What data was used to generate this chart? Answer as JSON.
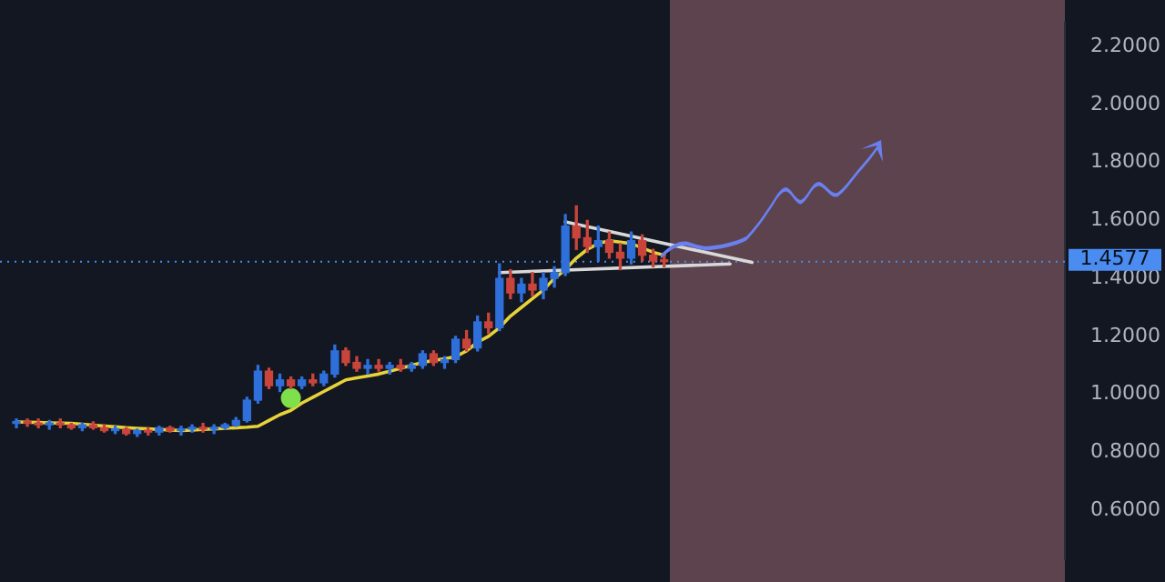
{
  "chart_data": {
    "type": "candlestick",
    "categories": [
      null,
      null,
      null,
      null,
      null,
      null,
      null,
      null,
      null,
      null,
      null,
      null,
      null,
      null,
      null,
      null,
      null,
      null,
      null,
      null,
      null,
      null,
      null,
      null,
      null,
      null,
      null,
      null,
      null,
      null,
      null,
      null,
      null,
      null,
      null,
      null,
      null,
      null,
      null,
      null,
      null,
      null,
      null,
      null,
      null,
      null,
      null,
      null,
      null,
      null,
      null,
      null,
      null,
      null,
      null,
      null,
      null,
      null,
      null,
      null,
      null,
      null,
      null,
      null,
      null,
      null,
      null,
      null,
      null,
      null,
      null,
      null,
      null,
      null,
      null,
      null,
      null,
      null,
      null,
      null,
      null,
      null,
      null,
      null,
      null,
      null,
      null,
      null,
      null,
      null,
      null,
      null,
      null,
      null,
      null,
      null
    ],
    "ohlc": [
      [
        0.9,
        0.915,
        0.885,
        0.905
      ],
      [
        0.905,
        0.915,
        0.89,
        0.9
      ],
      [
        0.9,
        0.915,
        0.885,
        0.895
      ],
      [
        0.895,
        0.91,
        0.88,
        0.9
      ],
      [
        0.9,
        0.915,
        0.885,
        0.895
      ],
      [
        0.895,
        0.9,
        0.88,
        0.885
      ],
      [
        0.885,
        0.9,
        0.875,
        0.895
      ],
      [
        0.895,
        0.905,
        0.88,
        0.885
      ],
      [
        0.885,
        0.895,
        0.87,
        0.875
      ],
      [
        0.875,
        0.89,
        0.865,
        0.88
      ],
      [
        0.88,
        0.885,
        0.86,
        0.865
      ],
      [
        0.865,
        0.88,
        0.855,
        0.875
      ],
      [
        0.875,
        0.885,
        0.86,
        0.87
      ],
      [
        0.87,
        0.89,
        0.86,
        0.885
      ],
      [
        0.885,
        0.89,
        0.87,
        0.875
      ],
      [
        0.875,
        0.89,
        0.86,
        0.88
      ],
      [
        0.88,
        0.895,
        0.87,
        0.885
      ],
      [
        0.885,
        0.9,
        0.87,
        0.88
      ],
      [
        0.88,
        0.895,
        0.865,
        0.885
      ],
      [
        0.885,
        0.9,
        0.88,
        0.895
      ],
      [
        0.895,
        0.92,
        0.89,
        0.91
      ],
      [
        0.91,
        0.99,
        0.905,
        0.98
      ],
      [
        0.98,
        1.1,
        0.97,
        1.08
      ],
      [
        1.08,
        1.09,
        1.02,
        1.03
      ],
      [
        1.03,
        1.07,
        1.01,
        1.05
      ],
      [
        1.05,
        1.06,
        1.02,
        1.03
      ],
      [
        1.03,
        1.06,
        1.02,
        1.05
      ],
      [
        1.05,
        1.07,
        1.03,
        1.04
      ],
      [
        1.04,
        1.08,
        1.03,
        1.07
      ],
      [
        1.07,
        1.17,
        1.06,
        1.15
      ],
      [
        1.15,
        1.16,
        1.1,
        1.11
      ],
      [
        1.11,
        1.13,
        1.08,
        1.09
      ],
      [
        1.09,
        1.12,
        1.07,
        1.1
      ],
      [
        1.1,
        1.12,
        1.08,
        1.09
      ],
      [
        1.09,
        1.11,
        1.07,
        1.1
      ],
      [
        1.1,
        1.12,
        1.08,
        1.09
      ],
      [
        1.09,
        1.11,
        1.08,
        1.1
      ],
      [
        1.1,
        1.15,
        1.09,
        1.14
      ],
      [
        1.14,
        1.15,
        1.1,
        1.11
      ],
      [
        1.11,
        1.13,
        1.09,
        1.12
      ],
      [
        1.12,
        1.2,
        1.11,
        1.19
      ],
      [
        1.19,
        1.22,
        1.15,
        1.16
      ],
      [
        1.16,
        1.27,
        1.15,
        1.25
      ],
      [
        1.25,
        1.28,
        1.21,
        1.23
      ],
      [
        1.23,
        1.45,
        1.22,
        1.4
      ],
      [
        1.4,
        1.43,
        1.33,
        1.35
      ],
      [
        1.35,
        1.4,
        1.32,
        1.38
      ],
      [
        1.38,
        1.42,
        1.34,
        1.36
      ],
      [
        1.36,
        1.42,
        1.33,
        1.4
      ],
      [
        1.4,
        1.44,
        1.37,
        1.42
      ],
      [
        1.42,
        1.62,
        1.41,
        1.58
      ],
      [
        1.58,
        1.65,
        1.5,
        1.54
      ],
      [
        1.54,
        1.6,
        1.49,
        1.51
      ],
      [
        1.51,
        1.58,
        1.46,
        1.53
      ],
      [
        1.53,
        1.56,
        1.47,
        1.49
      ],
      [
        1.49,
        1.52,
        1.43,
        1.47
      ],
      [
        1.47,
        1.56,
        1.45,
        1.53
      ],
      [
        1.53,
        1.55,
        1.46,
        1.48
      ],
      [
        1.48,
        1.5,
        1.44,
        1.46
      ],
      [
        1.46,
        1.48,
        1.44,
        1.4577
      ],
      null,
      null,
      null,
      null,
      null,
      null,
      null,
      null,
      null,
      null,
      null,
      null,
      null,
      null,
      null,
      null,
      null,
      null,
      null,
      null,
      null,
      null,
      null,
      null,
      null,
      null,
      null,
      null,
      null,
      null,
      null,
      null,
      null,
      null,
      null,
      null
    ],
    "colors": [
      "#2e6fd9",
      "#c9453c",
      "#c9453c",
      "#2e6fd9",
      "#c9453c",
      "#c9453c",
      "#2e6fd9",
      "#c9453c",
      "#c9453c",
      "#2e6fd9",
      "#c9453c",
      "#2e6fd9",
      "#c9453c",
      "#2e6fd9",
      "#c9453c",
      "#2e6fd9",
      "#2e6fd9",
      "#c9453c",
      "#2e6fd9",
      "#2e6fd9",
      "#2e6fd9",
      "#2e6fd9",
      "#2e6fd9",
      "#c9453c",
      "#2e6fd9",
      "#c9453c",
      "#2e6fd9",
      "#c9453c",
      "#2e6fd9",
      "#2e6fd9",
      "#c9453c",
      "#c9453c",
      "#2e6fd9",
      "#c9453c",
      "#2e6fd9",
      "#c9453c",
      "#2e6fd9",
      "#2e6fd9",
      "#c9453c",
      "#2e6fd9",
      "#2e6fd9",
      "#c9453c",
      "#2e6fd9",
      "#c9453c",
      "#2e6fd9",
      "#c9453c",
      "#2e6fd9",
      "#c9453c",
      "#2e6fd9",
      "#2e6fd9",
      "#2e6fd9",
      "#c9453c",
      "#c9453c",
      "#2e6fd9",
      "#c9453c",
      "#c9453c",
      "#2e6fd9",
      "#c9453c",
      "#c9453c",
      "#c9453c",
      null,
      null,
      null,
      null,
      null,
      null,
      null,
      null,
      null,
      null,
      null,
      null,
      null,
      null,
      null,
      null,
      null,
      null,
      null,
      null,
      null,
      null,
      null,
      null,
      null,
      null,
      null,
      null,
      null,
      null,
      null,
      null,
      null,
      null,
      null,
      null
    ],
    "series": [
      {
        "type": "line",
        "color": "#e8d23a",
        "marker": "none",
        "values": [
          0.905,
          0.904,
          0.903,
          0.902,
          0.901,
          0.9,
          0.897,
          0.894,
          0.891,
          0.888,
          0.885,
          0.883,
          0.881,
          0.879,
          0.877,
          0.875,
          0.877,
          0.879,
          0.881,
          0.883,
          0.885,
          0.887,
          0.89,
          0.91,
          0.93,
          0.945,
          0.97,
          0.99,
          1.01,
          1.03,
          1.05,
          1.057,
          1.063,
          1.07,
          1.08,
          1.09,
          1.1,
          1.11,
          1.117,
          1.123,
          1.13,
          1.15,
          1.18,
          1.2,
          1.23,
          1.27,
          1.3,
          1.33,
          1.36,
          1.4,
          1.43,
          1.47,
          1.5,
          1.52,
          1.53,
          1.525,
          1.52,
          1.505,
          1.49,
          1.48,
          null,
          null,
          null,
          null,
          null,
          null,
          null,
          null,
          null,
          null,
          null,
          null,
          null,
          null,
          null,
          null,
          null,
          null,
          null,
          null,
          null,
          null,
          null,
          null,
          null,
          null,
          null,
          null,
          null,
          null,
          null,
          null,
          null,
          null,
          null,
          null
        ]
      },
      {
        "type": "line",
        "color": "#d8d8d8",
        "marker": "none",
        "values": [
          null,
          null,
          null,
          null,
          null,
          null,
          null,
          null,
          null,
          null,
          null,
          null,
          null,
          null,
          null,
          null,
          null,
          null,
          null,
          null,
          null,
          null,
          null,
          null,
          null,
          null,
          null,
          null,
          null,
          null,
          null,
          null,
          null,
          null,
          null,
          null,
          null,
          null,
          null,
          null,
          null,
          null,
          null,
          null,
          null,
          null,
          null,
          null,
          null,
          null,
          1.595,
          null,
          null,
          null,
          null,
          null,
          null,
          null,
          null,
          null,
          null,
          null,
          null,
          null,
          null,
          null,
          null,
          1.455,
          null,
          null,
          null,
          null,
          null,
          null,
          null,
          null,
          null,
          null,
          null,
          null,
          null,
          null,
          null,
          null,
          null,
          null,
          null,
          null,
          null,
          null,
          null,
          null,
          null,
          null,
          null,
          null
        ]
      },
      {
        "type": "line",
        "color": "#d8d8d8",
        "marker": "none",
        "values": [
          null,
          null,
          null,
          null,
          null,
          null,
          null,
          null,
          null,
          null,
          null,
          null,
          null,
          null,
          null,
          null,
          null,
          null,
          null,
          null,
          null,
          null,
          null,
          null,
          null,
          null,
          null,
          null,
          null,
          null,
          null,
          null,
          null,
          null,
          null,
          null,
          null,
          null,
          null,
          null,
          null,
          null,
          null,
          null,
          1.42,
          null,
          null,
          null,
          null,
          null,
          null,
          null,
          null,
          null,
          null,
          null,
          null,
          null,
          null,
          null,
          null,
          null,
          null,
          null,
          null,
          1.45,
          null,
          null,
          null,
          null,
          null,
          null,
          null,
          null,
          null,
          null,
          null,
          null,
          null,
          null,
          null,
          null,
          null,
          null,
          null,
          null,
          null,
          null,
          null,
          null,
          null,
          null,
          null,
          null,
          null,
          null
        ]
      },
      {
        "type": "scatter",
        "color": "#7ee04a",
        "marker": "circle",
        "values": [
          null,
          null,
          null,
          null,
          null,
          null,
          null,
          null,
          null,
          null,
          null,
          null,
          null,
          null,
          null,
          null,
          null,
          null,
          null,
          null,
          null,
          null,
          null,
          null,
          null,
          0.987,
          null,
          null,
          null,
          null,
          null,
          null,
          null,
          null,
          null,
          null,
          null,
          null,
          null,
          null,
          null,
          null,
          null,
          null,
          null,
          null,
          null,
          null,
          null,
          null,
          null,
          null,
          null,
          null,
          null,
          null,
          null,
          null,
          null,
          null,
          null,
          null,
          null,
          null,
          null,
          null,
          null,
          null,
          null,
          null,
          null,
          null,
          null,
          null,
          null,
          null,
          null,
          null,
          null,
          null,
          null,
          null,
          null,
          null,
          null,
          null,
          null,
          null,
          null,
          null,
          null,
          null,
          null,
          null,
          null,
          null
        ]
      }
    ],
    "ylim": [
      0.432,
      2.281
    ],
    "yticks": [
      {
        "value": 0.6,
        "label": "0.6000"
      },
      {
        "value": 0.8,
        "label": "0.8000"
      },
      {
        "value": 1.0,
        "label": "1.0000"
      },
      {
        "value": 1.2,
        "label": "1.2000"
      },
      {
        "value": 1.4,
        "label": "1.4000"
      },
      {
        "value": 1.6,
        "label": "1.6000"
      },
      {
        "value": 1.8,
        "label": "1.8000"
      },
      {
        "value": 2.0,
        "label": "2.0000"
      },
      {
        "value": 2.2,
        "label": "2.2000"
      }
    ],
    "tick_labels": "y",
    "grid": false,
    "legend": false,
    "ref_lines": [
      {
        "axis": "y",
        "value": 1.4577,
        "label": "1.4577",
        "color": "#4a8cf0",
        "line_style": "dotted"
      }
    ]
  }
}
